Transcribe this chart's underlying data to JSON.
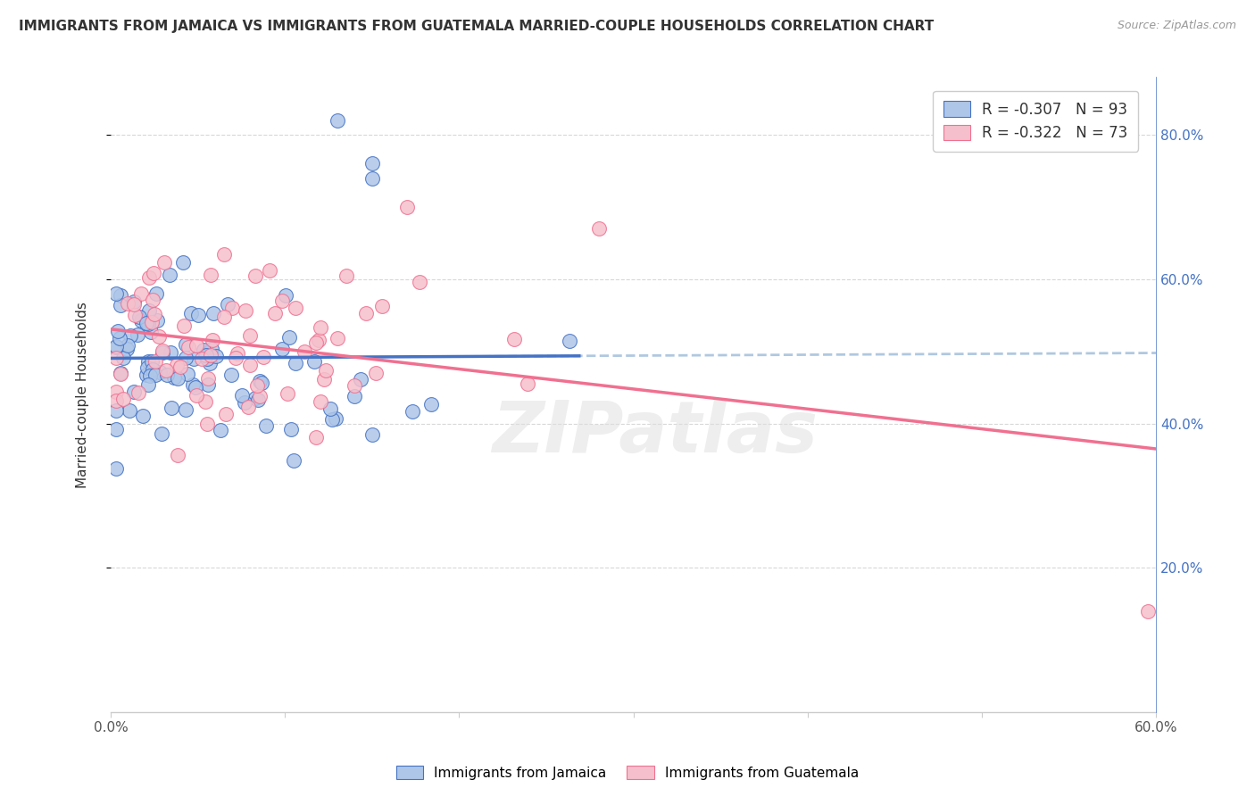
{
  "title": "IMMIGRANTS FROM JAMAICA VS IMMIGRANTS FROM GUATEMALA MARRIED-COUPLE HOUSEHOLDS CORRELATION CHART",
  "source": "Source: ZipAtlas.com",
  "xlabel_label": "Immigrants from Jamaica",
  "ylabel_label": "Married-couple Households",
  "xlabel2_label": "Immigrants from Guatemala",
  "x_min": 0.0,
  "x_max": 0.6,
  "y_min": 0.0,
  "y_max": 0.88,
  "r_jamaica": -0.307,
  "n_jamaica": 93,
  "r_guatemala": -0.322,
  "n_guatemala": 73,
  "color_jamaica": "#aec6e8",
  "color_guatemala": "#f5c0cc",
  "line_color_jamaica": "#4472c4",
  "line_color_guatemala": "#f07090",
  "line_color_dashed": "#b0c8e0",
  "watermark": "ZIPatlas",
  "background_color": "#ffffff",
  "grid_color": "#d8d8d8"
}
